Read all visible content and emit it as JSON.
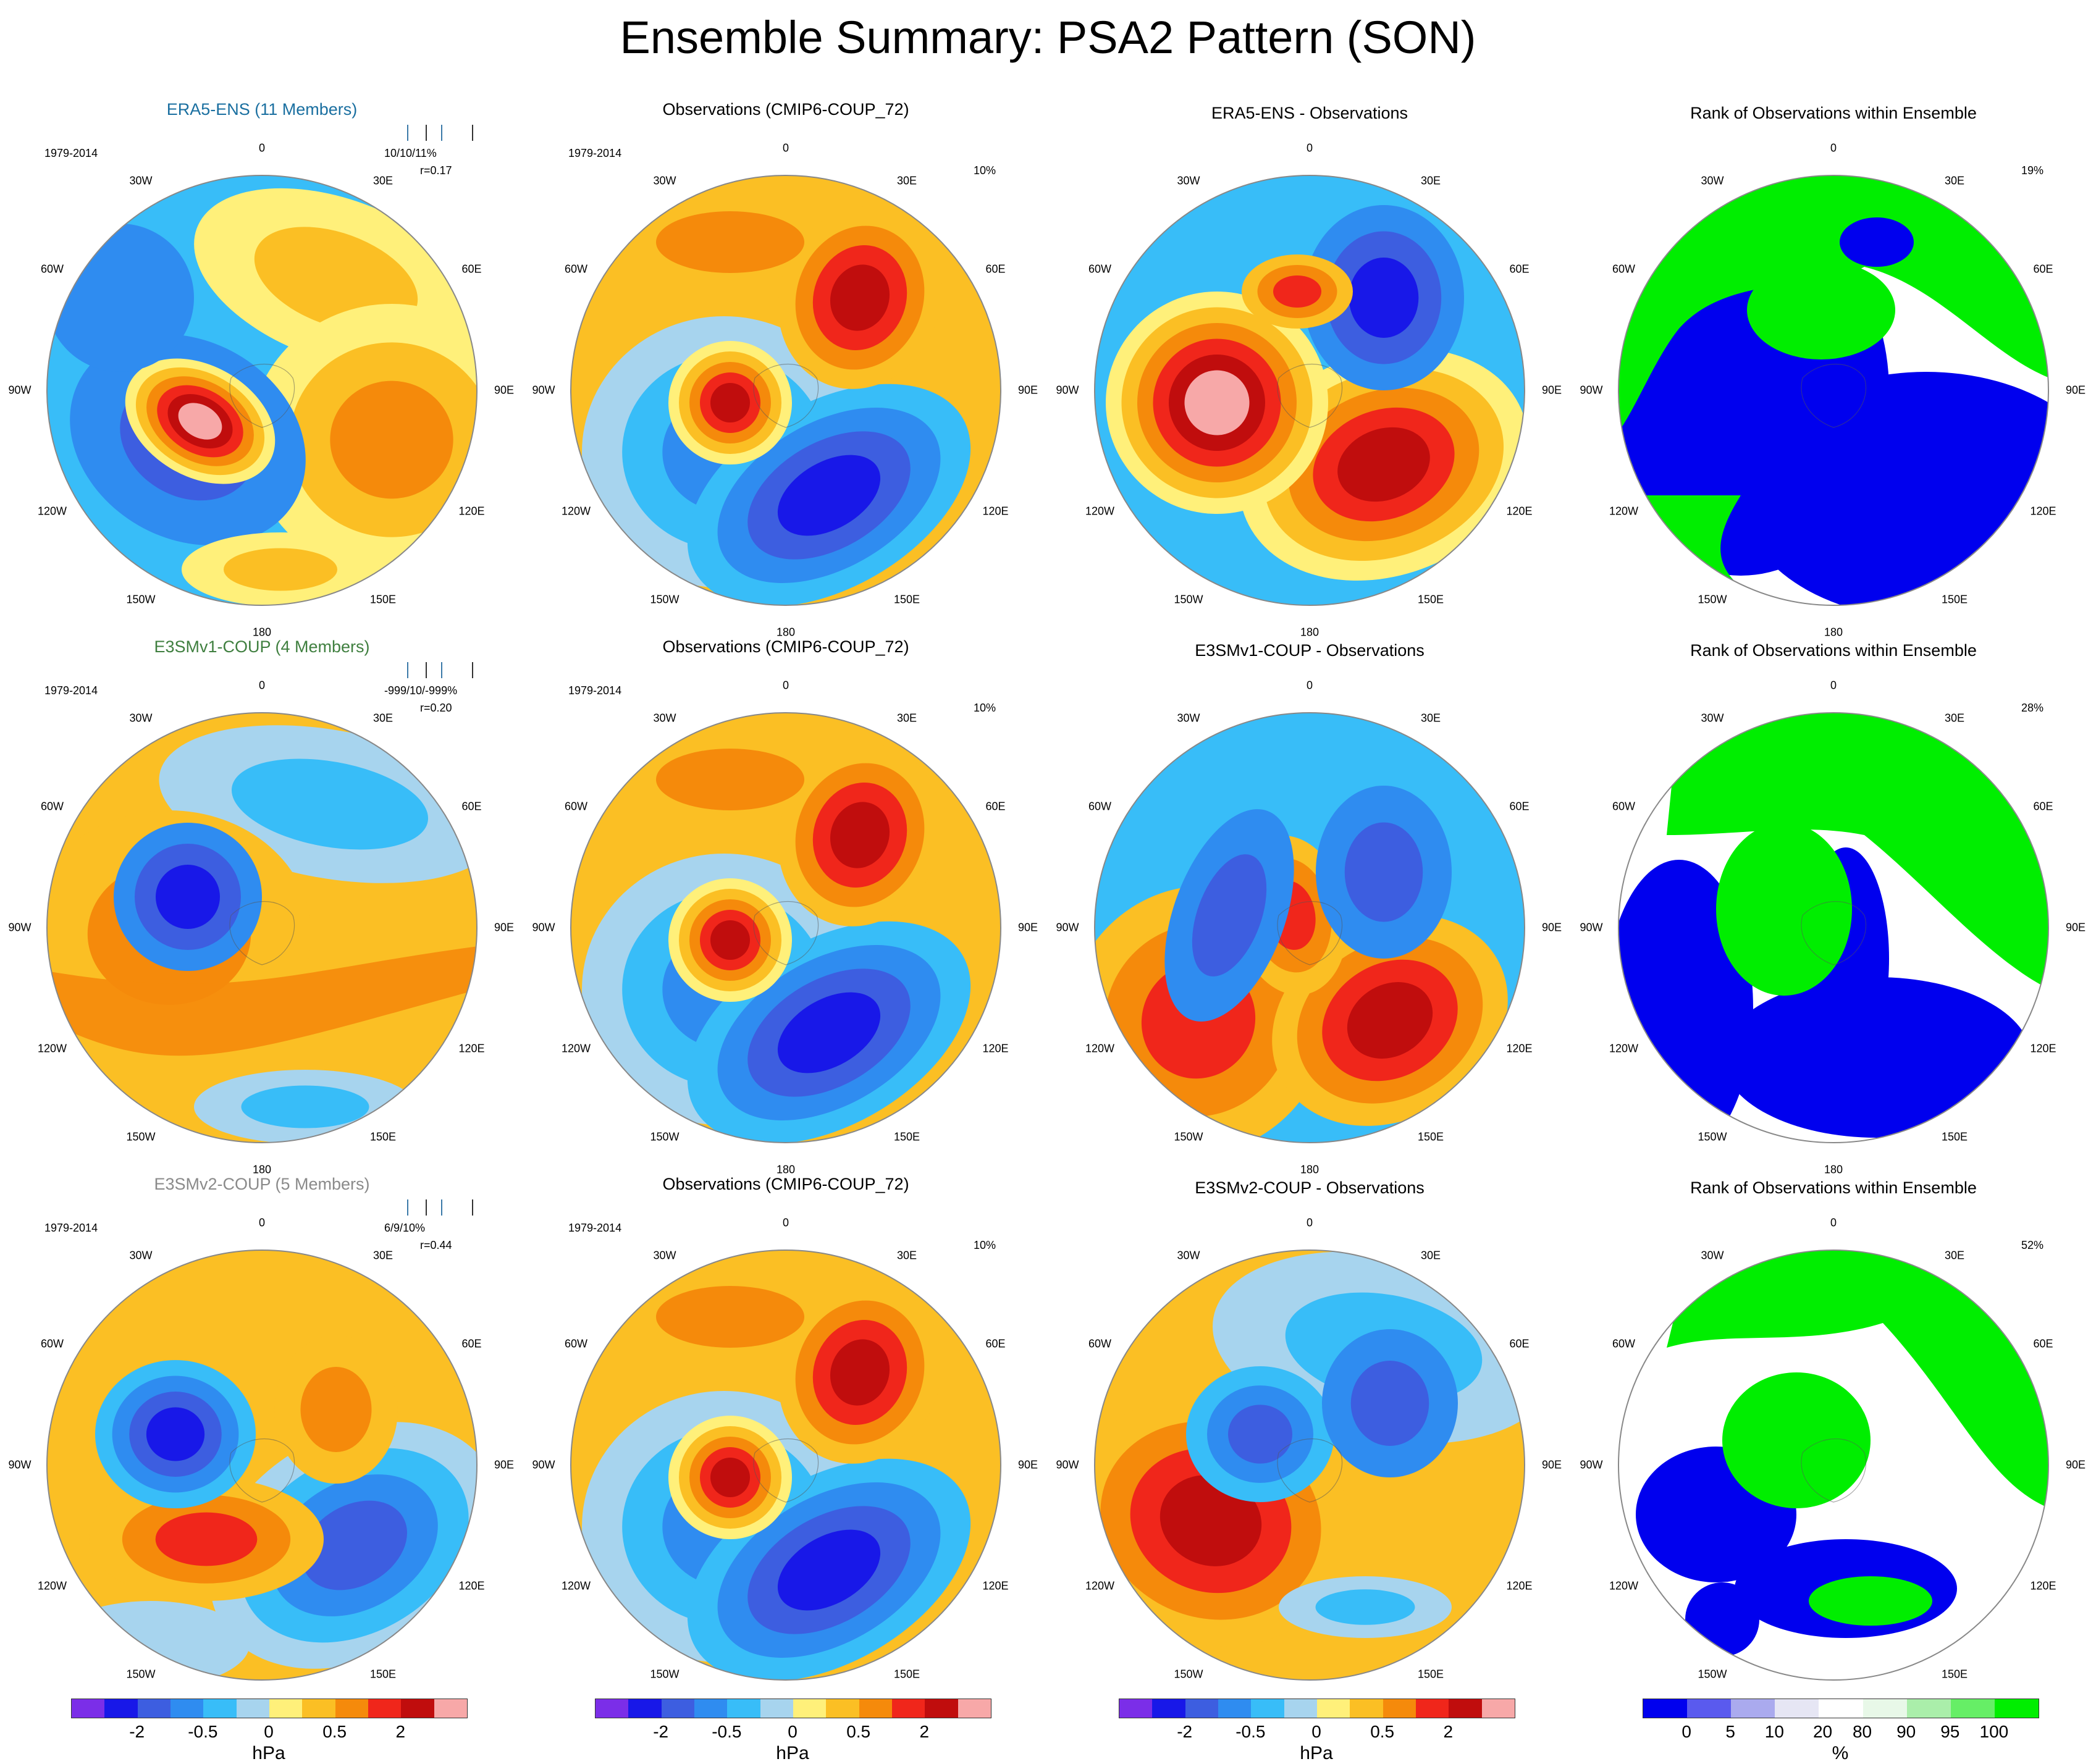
{
  "title": "Ensemble Summary: PSA2 Pattern (SON)",
  "lon_labels": [
    "0",
    "30E",
    "60E",
    "90E",
    "120E",
    "150E",
    "180",
    "150W",
    "120W",
    "90W",
    "60W",
    "30W"
  ],
  "colors": {
    "c_vneg": "#7b2ee8",
    "c_neg4": "#1818e8",
    "c_neg3": "#3d5ee0",
    "c_neg2": "#2f8cf0",
    "c_neg1": "#38bdf8",
    "c_neg0": "#a7d4ee",
    "c_pos0": "#fff07a",
    "c_pos1": "#fbbf24",
    "c_pos2": "#f58a0b",
    "c_pos3": "#f0261b",
    "c_pos4": "#c00d0d",
    "c_pos5": "#f7a8a8",
    "rank_blue": "#0000ee",
    "rank_green": "#00ee00",
    "title_row1": "#1a6fa0",
    "title_row2": "#3f7f3f",
    "title_row3": "#8a8a8a"
  },
  "rows": [
    {
      "model_title": "ERA5-ENS (11 Members)",
      "period": "1979-2014",
      "stats": "10/10/11%",
      "corr": "r=0.17",
      "obs_title": "Observations (CMIP6-COUP_72)",
      "obs_period": "1979-2014",
      "obs_pct": "10%",
      "diff_title": "ERA5-ENS - Observations",
      "rank_title": "Rank of Observations within Ensemble",
      "rank_pct": "19%"
    },
    {
      "model_title": "E3SMv1-COUP (4 Members)",
      "period": "1979-2014",
      "stats": "-999/10/-999%",
      "corr": "r=0.20",
      "obs_title": "Observations (CMIP6-COUP_72)",
      "obs_period": "1979-2014",
      "obs_pct": "10%",
      "diff_title": "E3SMv1-COUP - Observations",
      "rank_title": "Rank of Observations within Ensemble",
      "rank_pct": "28%"
    },
    {
      "model_title": "E3SMv2-COUP (5 Members)",
      "period": "1979-2014",
      "stats": "6/9/10%",
      "corr": "r=0.44",
      "obs_title": "Observations (CMIP6-COUP_72)",
      "obs_period": "1979-2014",
      "obs_pct": "10%",
      "diff_title": "E3SMv2-COUP - Observations",
      "rank_title": "Rank of Observations within Ensemble",
      "rank_pct": "52%"
    }
  ],
  "colorbar_hpa": {
    "ticks": [
      "-2",
      "-0.5",
      "0",
      "0.5",
      "2"
    ],
    "unit": "hPa"
  },
  "colorbar_rank": {
    "ticks": [
      "0",
      "5",
      "10",
      "20",
      "80",
      "90",
      "95",
      "100"
    ],
    "unit": "%"
  }
}
